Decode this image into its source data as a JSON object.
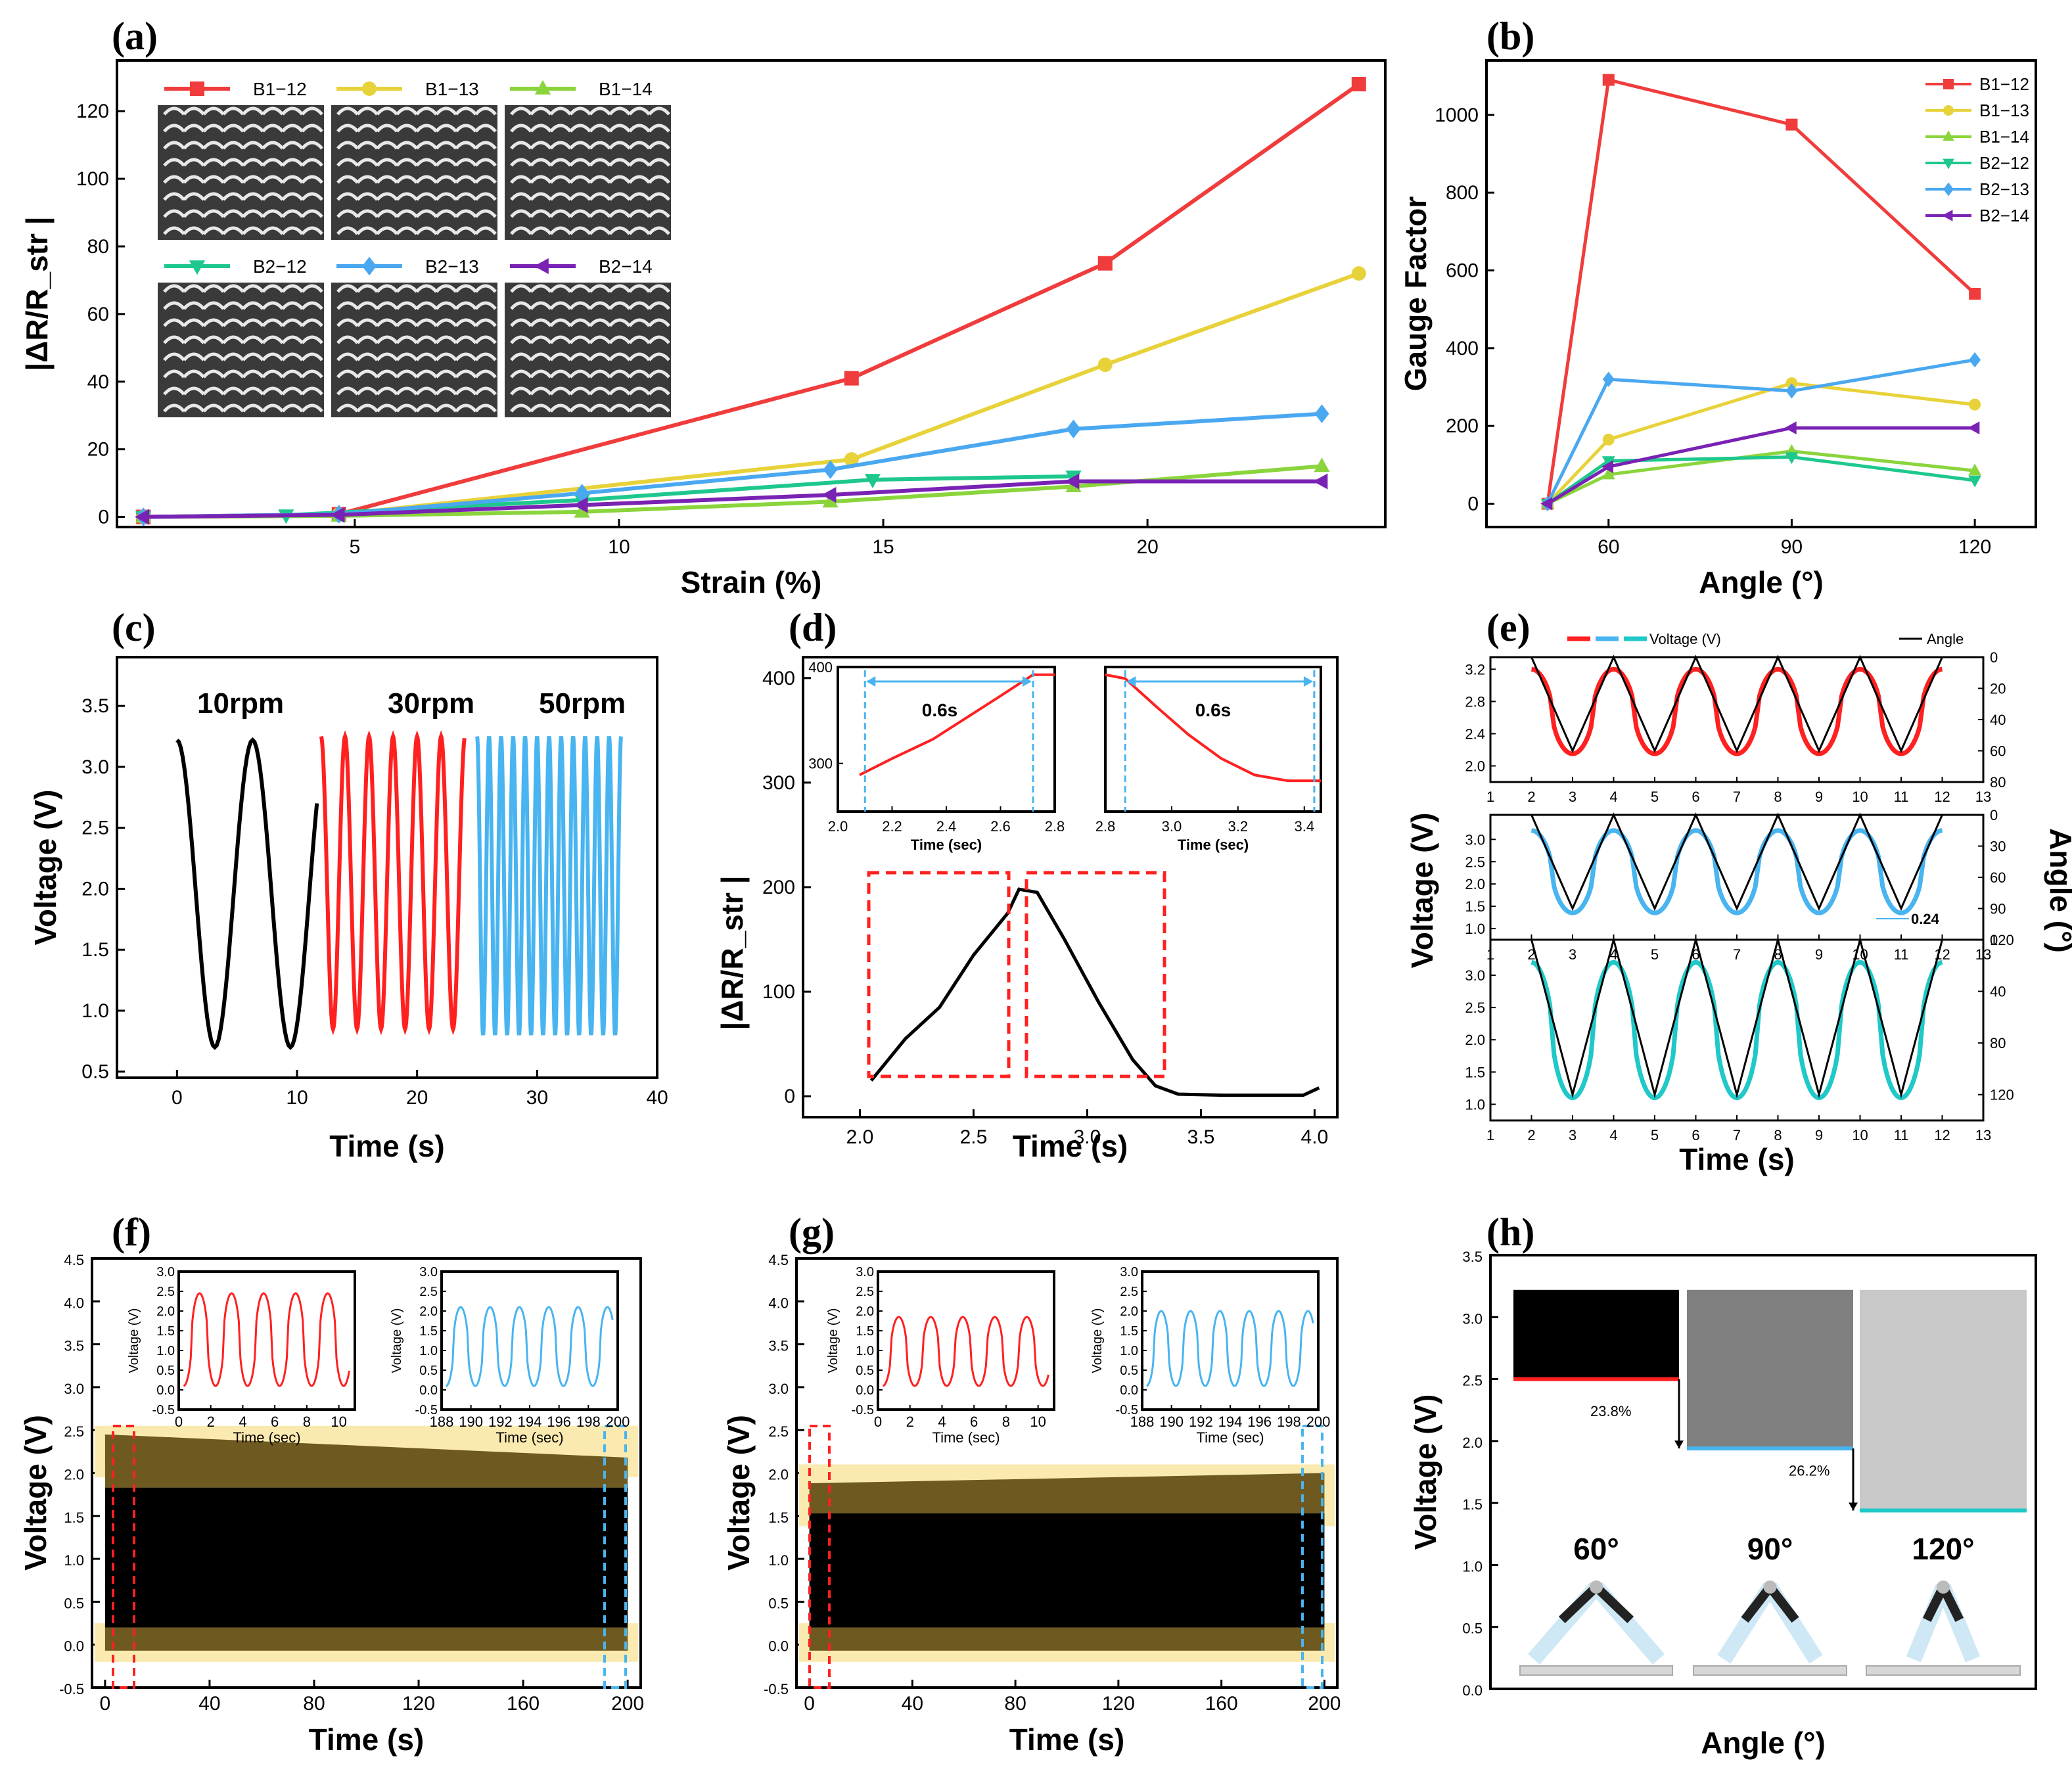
{
  "panel_labels": [
    "(a)",
    "(b)",
    "(c)",
    "(d)",
    "(e)",
    "(f)",
    "(g)",
    "(h)"
  ],
  "colors": {
    "B1-12": "#f03c3c",
    "B1-13": "#e8d23a",
    "B1-14": "#8ad43c",
    "B2-12": "#1ec88c",
    "B2-13": "#4aa8f0",
    "B2-14": "#7a22b4",
    "black": "#000000",
    "red": "#ff2020",
    "blue": "#48b4f0",
    "cyan": "#20c8c8",
    "band": "#fbeab0",
    "olive": "#6e5a20"
  },
  "chart_data": [
    {
      "id": "a",
      "type": "line",
      "xlabel": "Strain (%)",
      "ylabel": "|ΔR/R_str |",
      "xlim": [
        0.5,
        24.5
      ],
      "ylim": [
        -3,
        135
      ],
      "xticks": [
        5,
        10,
        15,
        20
      ],
      "yticks": [
        0,
        20,
        40,
        60,
        80,
        100,
        120
      ],
      "legend": "top-left, two rows with photo insets",
      "series": [
        {
          "name": "B1−12",
          "marker": "square",
          "x": [
            1,
            4.7,
            14.4,
            19.2,
            24
          ],
          "y": [
            0,
            0.8,
            41,
            75,
            128
          ]
        },
        {
          "name": "B1−13",
          "marker": "circle",
          "x": [
            1,
            4.7,
            14.4,
            19.2,
            24
          ],
          "y": [
            0,
            0.7,
            17,
            45,
            72
          ]
        },
        {
          "name": "B1−14",
          "marker": "triangle-up",
          "x": [
            1,
            4.7,
            9.3,
            14,
            18.6,
            23.3
          ],
          "y": [
            0,
            0.3,
            1.5,
            4.5,
            9,
            15
          ]
        },
        {
          "name": "B2−12",
          "marker": "triangle-down",
          "x": [
            1,
            3.7,
            9.3,
            14.8,
            18.6
          ],
          "y": [
            0,
            0.5,
            5,
            11,
            12
          ]
        },
        {
          "name": "B2−13",
          "marker": "diamond",
          "x": [
            1,
            4.7,
            9.3,
            14,
            18.6,
            23.3
          ],
          "y": [
            0,
            0.8,
            7,
            14,
            26,
            30.5
          ]
        },
        {
          "name": "B2−14",
          "marker": "triangle-left",
          "x": [
            1,
            4.7,
            9.3,
            14,
            18.6,
            23.3
          ],
          "y": [
            0,
            0.6,
            3.5,
            6.5,
            10.5,
            10.5
          ]
        }
      ]
    },
    {
      "id": "b",
      "type": "line",
      "xlabel": "Angle (°)",
      "ylabel": "Gauge Factor",
      "xlim": [
        40,
        130
      ],
      "ylim": [
        -60,
        1140
      ],
      "xticks": [
        60,
        90,
        120
      ],
      "yticks": [
        0,
        200,
        400,
        600,
        800,
        1000
      ],
      "legend": "top-right",
      "series": [
        {
          "name": "B1−12",
          "marker": "square",
          "x": [
            50,
            60,
            90,
            120
          ],
          "y": [
            0,
            1090,
            975,
            540
          ]
        },
        {
          "name": "B1−13",
          "marker": "circle",
          "x": [
            50,
            60,
            90,
            120
          ],
          "y": [
            0,
            165,
            310,
            255
          ]
        },
        {
          "name": "B1−14",
          "marker": "triangle-up",
          "x": [
            50,
            60,
            90,
            120
          ],
          "y": [
            0,
            75,
            135,
            85
          ]
        },
        {
          "name": "B2−12",
          "marker": "triangle-down",
          "x": [
            50,
            60,
            90,
            120
          ],
          "y": [
            0,
            110,
            120,
            60
          ]
        },
        {
          "name": "B2−13",
          "marker": "diamond",
          "x": [
            50,
            60,
            90,
            120
          ],
          "y": [
            0,
            320,
            290,
            370
          ]
        },
        {
          "name": "B2−14",
          "marker": "triangle-left",
          "x": [
            50,
            60,
            90,
            120
          ],
          "y": [
            0,
            95,
            195,
            195
          ]
        }
      ]
    },
    {
      "id": "c",
      "type": "line",
      "xlabel": "Time (s)",
      "ylabel": "Voltage (V)",
      "xlim": [
        -5,
        40
      ],
      "ylim": [
        0.45,
        3.9
      ],
      "xticks": [
        0,
        10,
        20,
        30,
        40
      ],
      "yticks": [
        0.5,
        1.0,
        1.5,
        2.0,
        2.5,
        3.0,
        3.5
      ],
      "annotations": [
        "10rpm",
        "30rpm",
        "50rpm"
      ],
      "series": [
        {
          "name": "10rpm",
          "t_start": 0,
          "t_end": 11.8,
          "period": 6.3,
          "vmin": 0.7,
          "vmax": 3.22
        },
        {
          "name": "30rpm",
          "t_start": 12,
          "t_end": 24,
          "period": 2.0,
          "vmin": 0.85,
          "vmax": 3.25
        },
        {
          "name": "50rpm",
          "t_start": 25,
          "t_end": 37,
          "period": 1.0,
          "vmin": 0.8,
          "vmax": 3.25
        }
      ]
    },
    {
      "id": "d",
      "type": "line",
      "xlabel": "Time (s)",
      "ylabel": "|ΔR/R_str |",
      "xlim": [
        1.75,
        4.1
      ],
      "ylim": [
        -20,
        420
      ],
      "xticks": [
        2.0,
        2.5,
        3.0,
        3.5,
        4.0
      ],
      "yticks": [
        0,
        100,
        200,
        300,
        400
      ],
      "series": [
        {
          "name": "response",
          "x": [
            2.05,
            2.2,
            2.35,
            2.5,
            2.65,
            2.7,
            2.78,
            2.9,
            3.05,
            3.2,
            3.3,
            3.4,
            3.6,
            3.8,
            3.95,
            4.02
          ],
          "y": [
            15,
            55,
            85,
            135,
            175,
            198,
            195,
            150,
            90,
            35,
            10,
            2,
            1,
            1,
            1,
            8
          ]
        }
      ],
      "insets": [
        {
          "xlim": [
            2.0,
            2.8
          ],
          "ylim": [
            250,
            400
          ],
          "xticks": [
            2.0,
            2.2,
            2.4,
            2.6,
            2.8
          ],
          "yticks": [
            300,
            400
          ],
          "xlabel": "Time (sec)",
          "annotation": "0.6s",
          "x": [
            2.08,
            2.2,
            2.35,
            2.5,
            2.6,
            2.72,
            2.8
          ],
          "y": [
            288,
            305,
            325,
            352,
            370,
            392,
            392
          ]
        },
        {
          "xlim": [
            2.8,
            3.45
          ],
          "ylim": [
            250,
            400
          ],
          "xticks": [
            2.8,
            3.0,
            3.2,
            3.4
          ],
          "yticks": [],
          "xlabel": "Time (sec)",
          "annotation": "0.6s",
          "x": [
            2.8,
            2.86,
            2.95,
            3.05,
            3.15,
            3.25,
            3.35,
            3.45
          ],
          "y": [
            392,
            388,
            360,
            330,
            305,
            288,
            282,
            282
          ]
        }
      ]
    },
    {
      "id": "e",
      "type": "line",
      "xlabel": "Time (s)",
      "ylabel": "Voltage (V)",
      "ylabel_right": "Angle (°)",
      "legend": [
        "Voltage (V)",
        "Angle"
      ],
      "xlim": [
        1,
        13
      ],
      "xticks": [
        1,
        2,
        3,
        4,
        5,
        6,
        7,
        8,
        9,
        10,
        11,
        12,
        13
      ],
      "annotation": "0.24",
      "subplots": [
        {
          "ylim": [
            1.8,
            3.35
          ],
          "yticks": [
            2.0,
            2.4,
            2.8,
            3.2
          ],
          "right_ylim": [
            80,
            0
          ],
          "right_yticks": [
            0,
            20,
            40,
            60,
            80
          ],
          "voltage_max": 3.2,
          "voltage_min": 2.15,
          "angle_max": 60
        },
        {
          "ylim": [
            0.75,
            3.55
          ],
          "yticks": [
            1.0,
            1.5,
            2.0,
            2.5,
            3.0
          ],
          "right_ylim": [
            120,
            0
          ],
          "right_yticks": [
            0,
            30,
            60,
            90,
            120
          ],
          "voltage_max": 3.2,
          "voltage_min": 1.35,
          "angle_max": 90
        },
        {
          "ylim": [
            0.75,
            3.55
          ],
          "yticks": [
            1.0,
            1.5,
            2.0,
            2.5,
            3.0
          ],
          "right_ylim": [
            140,
            0
          ],
          "right_yticks": [
            0,
            40,
            80,
            120
          ],
          "voltage_max": 3.2,
          "voltage_min": 1.1,
          "angle_max": 120
        }
      ]
    },
    {
      "id": "f",
      "type": "area",
      "xlabel": "Time (s)",
      "ylabel": "Voltage (V)",
      "xlim": [
        -5,
        205
      ],
      "ylim": [
        -0.5,
        4.5
      ],
      "xticks": [
        0,
        40,
        80,
        120,
        160,
        200
      ],
      "yticks": [
        -0.5,
        0.0,
        0.5,
        1.0,
        1.5,
        2.0,
        2.5,
        3.0,
        3.5,
        4.0,
        4.5
      ],
      "envelope": {
        "max_start": 2.45,
        "max_end": 2.18,
        "min": 0.0
      },
      "insets": [
        {
          "xlim": [
            0,
            11
          ],
          "ylim": [
            -0.5,
            3.0
          ],
          "xticks": [
            0,
            2,
            4,
            6,
            8,
            10
          ],
          "yticks": [
            -0.5,
            0.0,
            0.5,
            1.0,
            1.5,
            2.0,
            2.5,
            3.0
          ],
          "xlabel": "Time (sec)",
          "ylabel": "Voltage (V)",
          "period": 2.0,
          "vmin": 0.1,
          "vmax": 2.45
        },
        {
          "xlim": [
            188,
            200
          ],
          "ylim": [
            -0.5,
            3.0
          ],
          "xticks": [
            188,
            190,
            192,
            194,
            196,
            198,
            200
          ],
          "yticks": [
            -0.5,
            0.0,
            0.5,
            1.0,
            1.5,
            2.0,
            2.5,
            3.0
          ],
          "xlabel": "Time (sec)",
          "ylabel": "Voltage (V)",
          "period": 2.0,
          "vmin": 0.1,
          "vmax": 2.1
        }
      ]
    },
    {
      "id": "g",
      "type": "area",
      "xlabel": "Time (s)",
      "ylabel": "Voltage (V)",
      "xlim": [
        -5,
        205
      ],
      "ylim": [
        -0.5,
        4.5
      ],
      "xticks": [
        0,
        40,
        80,
        120,
        160,
        200
      ],
      "yticks": [
        -0.5,
        0.0,
        0.5,
        1.0,
        1.5,
        2.0,
        2.5,
        3.0,
        3.5,
        4.0,
        4.5
      ],
      "envelope": {
        "max_start": 1.88,
        "max_end": 2.0,
        "min": 0.0
      },
      "insets": [
        {
          "xlim": [
            0,
            11
          ],
          "ylim": [
            -0.5,
            3.0
          ],
          "xticks": [
            0,
            2,
            4,
            6,
            8,
            10
          ],
          "yticks": [
            -0.5,
            0.0,
            0.5,
            1.0,
            1.5,
            2.0,
            2.5,
            3.0
          ],
          "xlabel": "Time (sec)",
          "ylabel": "Voltage (V)",
          "period": 2.0,
          "vmin": 0.1,
          "vmax": 1.85
        },
        {
          "xlim": [
            188,
            200
          ],
          "ylim": [
            -0.5,
            3.0
          ],
          "xticks": [
            188,
            190,
            192,
            194,
            196,
            198,
            200
          ],
          "yticks": [
            -0.5,
            0.0,
            0.5,
            1.0,
            1.5,
            2.0,
            2.5,
            3.0
          ],
          "xlabel": "Time (sec)",
          "ylabel": "Voltage (V)",
          "period": 2.0,
          "vmin": 0.1,
          "vmax": 2.0
        }
      ]
    },
    {
      "id": "h",
      "type": "bar",
      "xlabel": "Angle (°)",
      "ylabel": "Voltage (V)",
      "ylim": [
        0.0,
        3.5
      ],
      "yticks": [
        0.0,
        0.5,
        1.0,
        1.5,
        2.0,
        2.5,
        3.0,
        3.5
      ],
      "categories": [
        "60°",
        "90°",
        "120°"
      ],
      "max_voltage": [
        3.22,
        3.22,
        3.22
      ],
      "min_voltage": [
        2.5,
        1.94,
        1.44
      ],
      "annotations": [
        "23.8%",
        "26.2%"
      ]
    }
  ]
}
